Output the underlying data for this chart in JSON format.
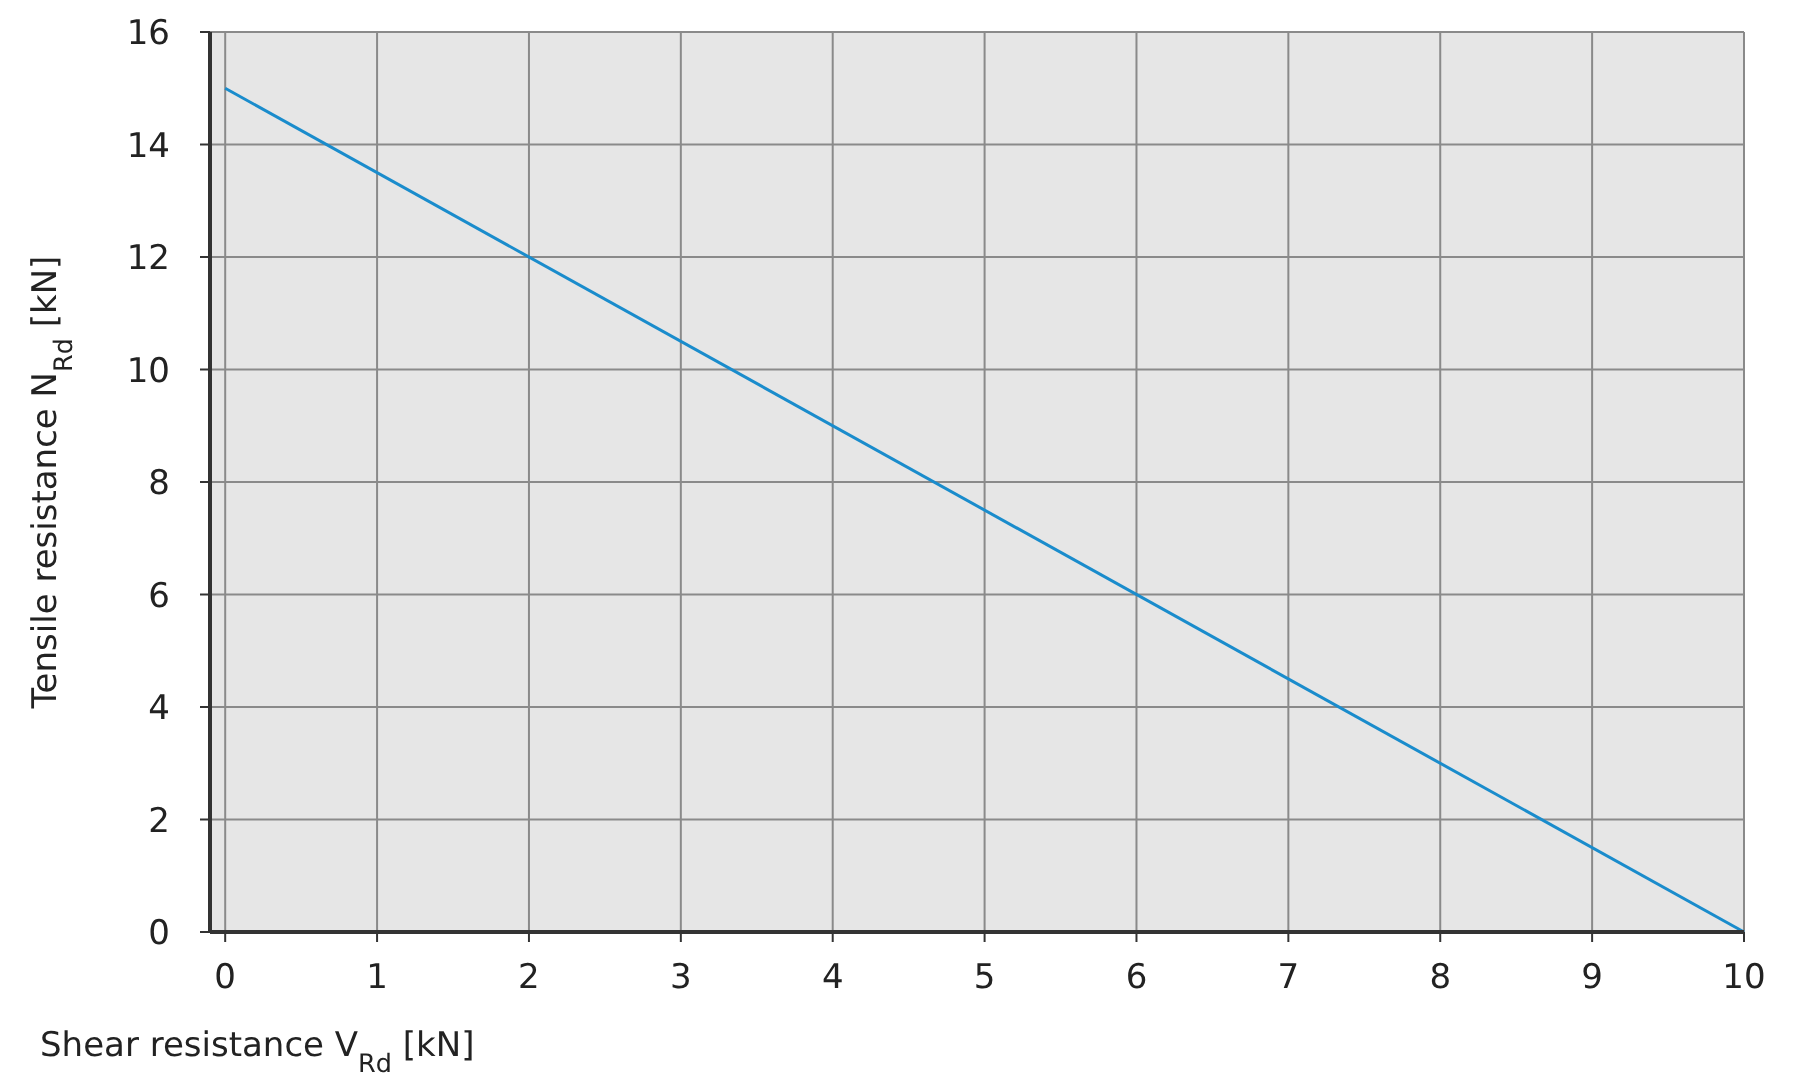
{
  "chart_data": {
    "type": "line",
    "xlabel": "Shear resistance V$_{Rd}$ [kN]",
    "ylabel": "Tensile resistance N$_{Rd}$ [kN]",
    "x": [
      0,
      10
    ],
    "series": [
      {
        "color": "#1a8ccc",
        "values": [
          15,
          0
        ]
      }
    ],
    "xlim": [
      -0.1,
      10
    ],
    "ylim": [
      0,
      16
    ],
    "xticks": [
      0,
      1,
      2,
      3,
      4,
      5,
      6,
      7,
      8,
      9,
      10
    ],
    "yticks": [
      0,
      2,
      4,
      6,
      8,
      10,
      12,
      14,
      16
    ],
    "grid": true,
    "marker": "none",
    "line_style": "solid"
  }
}
